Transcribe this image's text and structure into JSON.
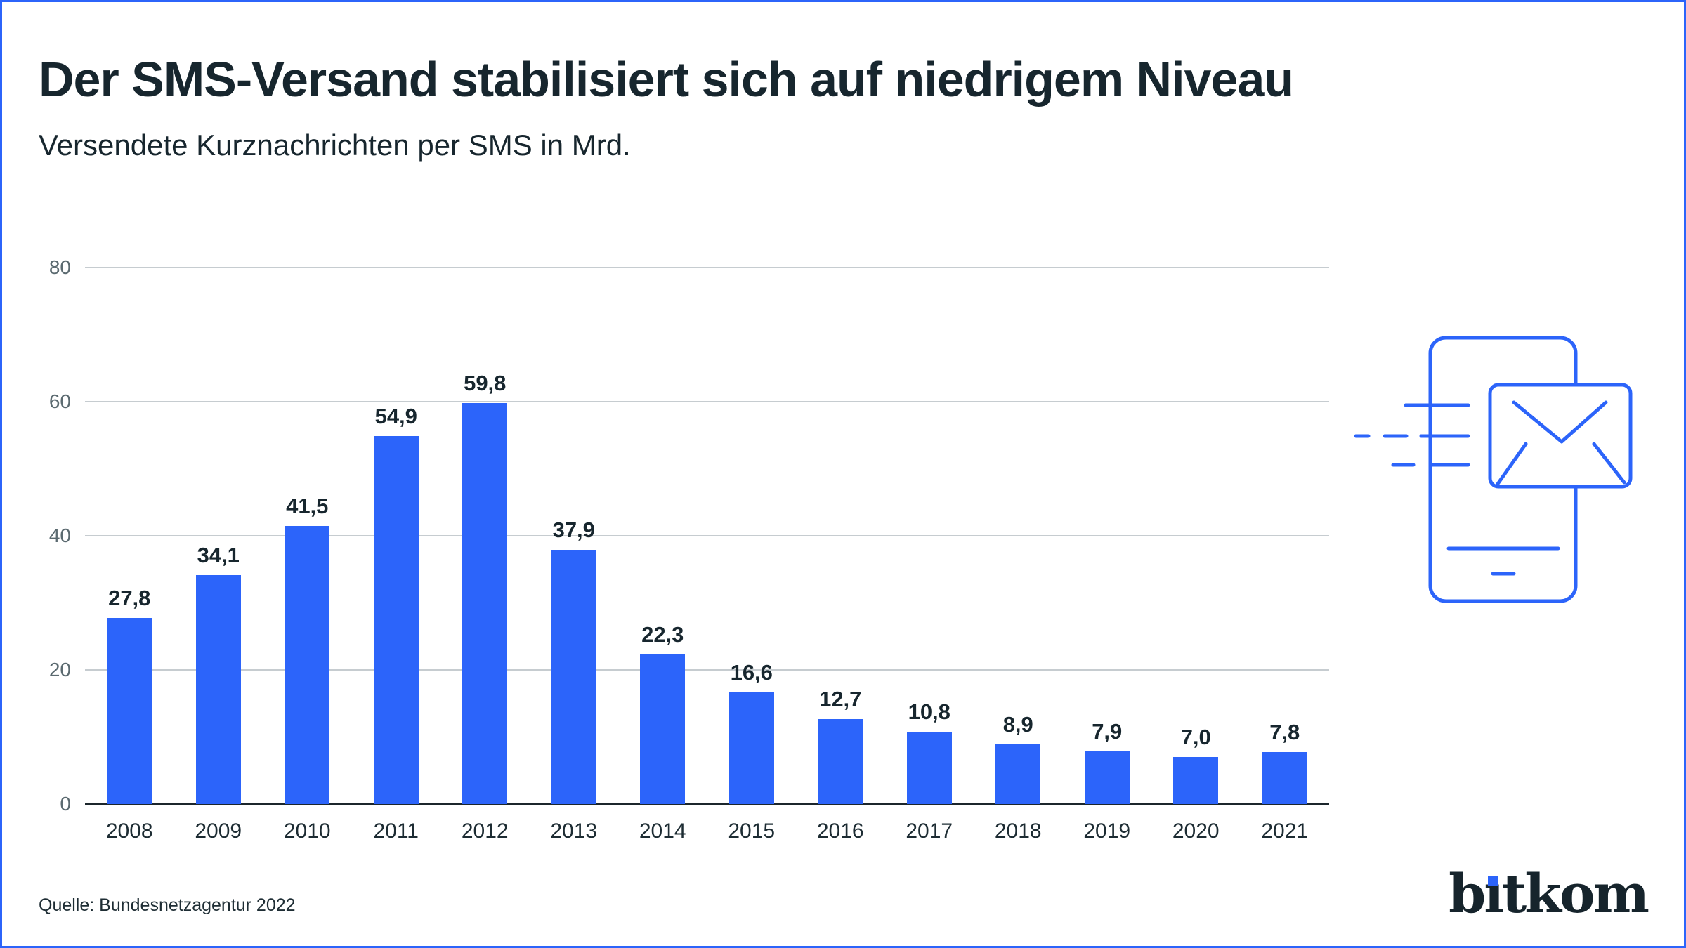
{
  "header": {
    "title": "Der SMS-Versand stabilisiert sich auf niedrigem Niveau",
    "subtitle": "Versendete Kurznachrichten per SMS in Mrd."
  },
  "chart_data": {
    "type": "bar",
    "title": "Der SMS-Versand stabilisiert sich auf niedrigem Niveau",
    "subtitle": "Versendete Kurznachrichten per SMS in Mrd.",
    "categories": [
      "2008",
      "2009",
      "2010",
      "2011",
      "2012",
      "2013",
      "2014",
      "2015",
      "2016",
      "2017",
      "2018",
      "2019",
      "2020",
      "2021"
    ],
    "values": [
      27.8,
      34.1,
      41.5,
      54.9,
      59.8,
      37.9,
      22.3,
      16.6,
      12.7,
      10.8,
      8.9,
      7.9,
      7.0,
      7.8
    ],
    "value_labels": [
      "27,8",
      "34,1",
      "41,5",
      "54,9",
      "59,8",
      "37,9",
      "22,3",
      "16,6",
      "12,7",
      "10,8",
      "8,9",
      "7,9",
      "7,0",
      "7,8"
    ],
    "unit": "Mrd.",
    "xlabel": "",
    "ylabel": "",
    "y_ticks": [
      0,
      20,
      40,
      60,
      80
    ],
    "ylim": [
      0,
      80
    ],
    "grid": true,
    "legend": "none",
    "bar_color": "#2c64fa"
  },
  "icon": {
    "name": "sms-phone-envelope-icon",
    "color": "#2c64fa"
  },
  "footer": {
    "source": "Quelle: Bundesnetzagentur 2022",
    "logo_text": "bitkom"
  },
  "colors": {
    "accent_blue": "#2c64fa",
    "text_dark": "#17262e",
    "axis_gray": "#5b6a70",
    "gridline": "#c6ccd0",
    "baseline": "#1c262c",
    "background": "#ffffff",
    "border": "#2c64fa",
    "logo_dot_blue": "#2c64fa"
  }
}
